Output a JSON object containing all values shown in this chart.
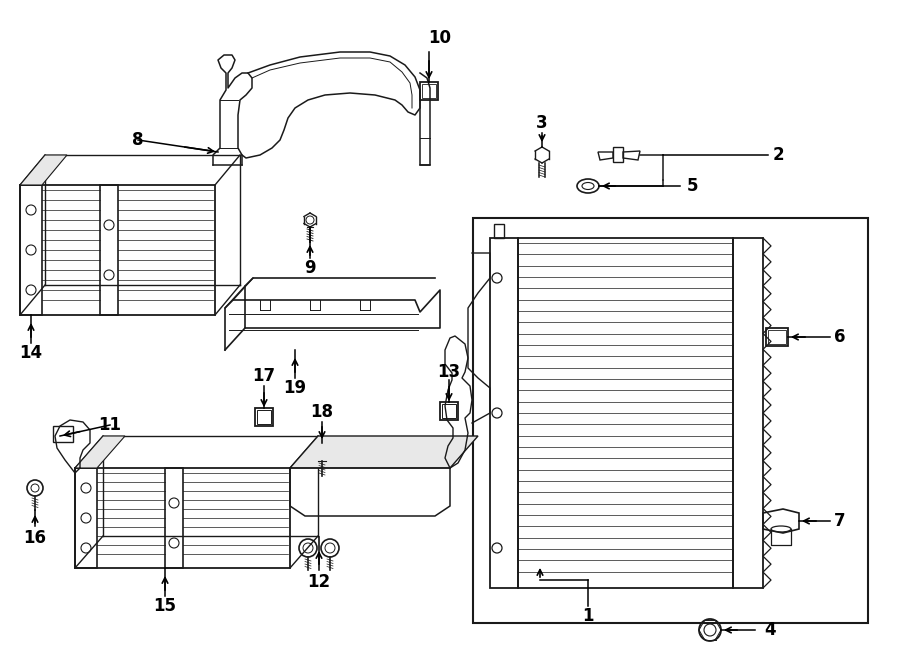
{
  "bg_color": "#ffffff",
  "lc": "#1a1a1a",
  "fig_width": 9.0,
  "fig_height": 6.62,
  "dpi": 100
}
